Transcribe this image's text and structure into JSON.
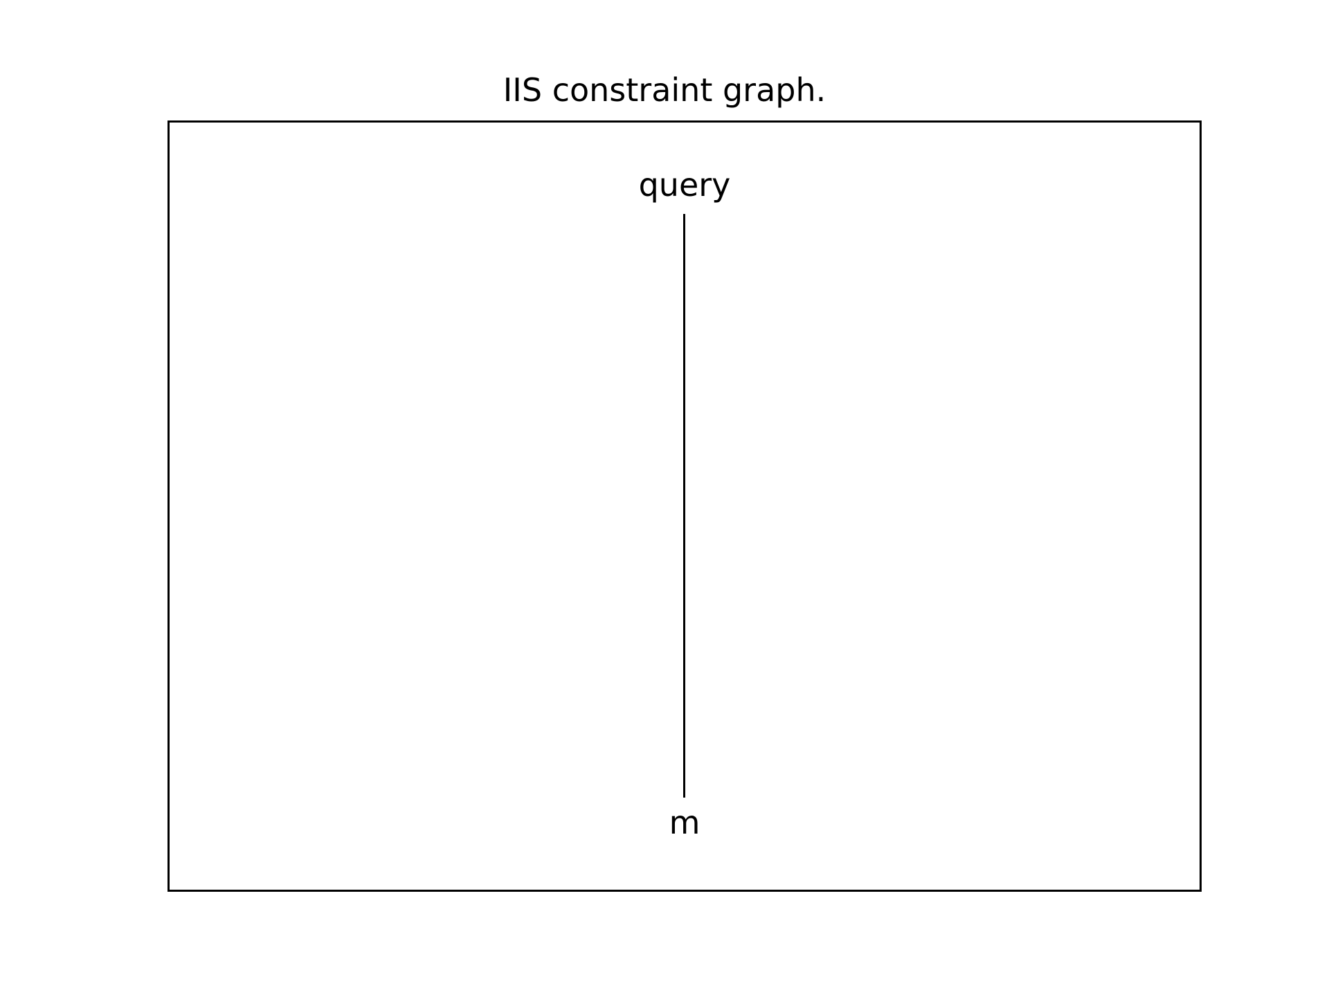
{
  "diagram": {
    "title": "IIS constraint graph.",
    "nodes": [
      {
        "id": "query",
        "label": "query"
      },
      {
        "id": "m",
        "label": "m"
      }
    ],
    "edges": [
      {
        "from": "query",
        "to": "m"
      }
    ],
    "colors": {
      "background": "#ffffff",
      "foreground": "#000000"
    }
  }
}
